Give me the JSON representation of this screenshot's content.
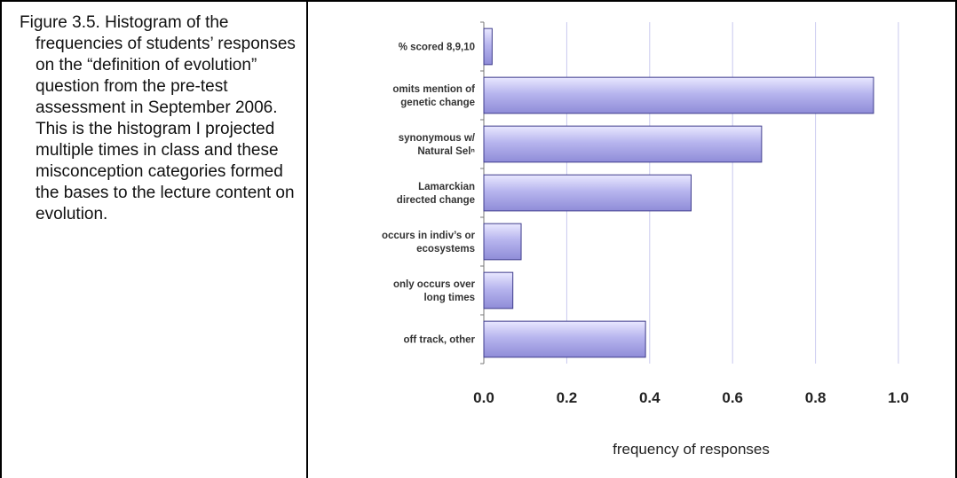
{
  "caption": {
    "text": "Figure 3.5.  Histogram of the frequencies of students’ responses on the “definition of evolution” question from the pre-test assessment in September 2006.  This is the histogram I projected multiple times in class and these misconception categories formed the bases to the lecture content on evolution."
  },
  "chart_data": {
    "type": "bar",
    "orientation": "horizontal",
    "title": "",
    "xlabel": "frequency of responses",
    "ylabel": "",
    "xlim": [
      0,
      1.0
    ],
    "xticks": [
      "0.0",
      "0.2",
      "0.4",
      "0.6",
      "0.8",
      "1.0"
    ],
    "grid": "vertical",
    "legend": "none",
    "bar_color": "#b7b5ee",
    "bar_edge_color": "#3f3d8c",
    "grid_color": "#c9c9ee",
    "categories": [
      [
        "% scored 8,9,10"
      ],
      [
        "omits mention of",
        "genetic change"
      ],
      [
        "synonymous w/",
        "Natural Selⁿ"
      ],
      [
        "Lamarckian",
        "directed change"
      ],
      [
        "occurs in indiv’s or",
        "ecosystems"
      ],
      [
        "only occurs over",
        "long times"
      ],
      [
        "off track, other"
      ]
    ],
    "values": [
      0.02,
      0.94,
      0.67,
      0.5,
      0.09,
      0.07,
      0.39
    ]
  }
}
